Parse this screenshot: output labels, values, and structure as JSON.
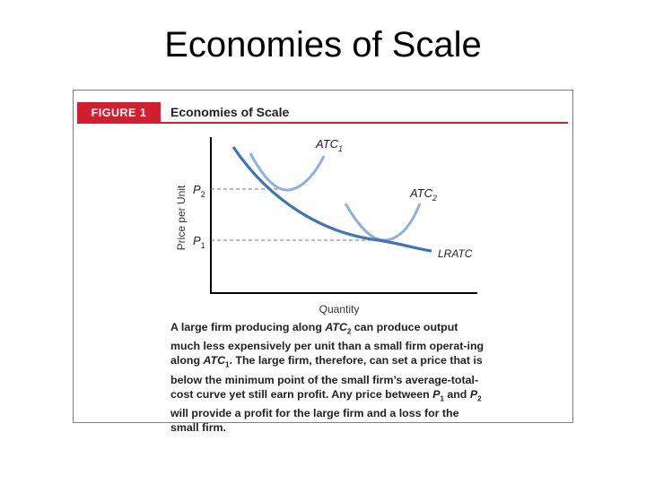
{
  "slide": {
    "title": "Economies of Scale"
  },
  "figure": {
    "label": "FIGURE 1",
    "title": "Economies of Scale",
    "axes": {
      "y_label": "Price per Unit",
      "x_label": "Quantity"
    },
    "price_levels": [
      {
        "name": "P",
        "sub": "2"
      },
      {
        "name": "P",
        "sub": "1"
      }
    ],
    "curves": [
      {
        "name": "ATC",
        "sub": "1",
        "color": "#8fb0dc"
      },
      {
        "name": "ATC",
        "sub": "2",
        "color": "#8fb0dc"
      },
      {
        "name": "LRATC",
        "sub": "",
        "color": "#3f74b8"
      }
    ],
    "colors": {
      "accent": "#d21f2f",
      "axis": "#000000",
      "dashed": "#777777"
    },
    "caption": {
      "t1": "A large firm producing along ",
      "atc2": "ATC",
      "atc2_sub": "2",
      "t2": " can produce output much less expensively per unit than a small firm operat-ing along ",
      "atc1": "ATC",
      "atc1_sub": "1",
      "t3": ". The large firm, therefore, can set a price that is below the minimum point of the small firm’s average-total-cost curve yet still earn profit. Any price between ",
      "p1": "P",
      "p1_sub": "1",
      "t4": " and ",
      "p2": "P",
      "p2_sub": "2",
      "t5": " will provide a profit for the large firm and a loss for the small firm."
    }
  }
}
